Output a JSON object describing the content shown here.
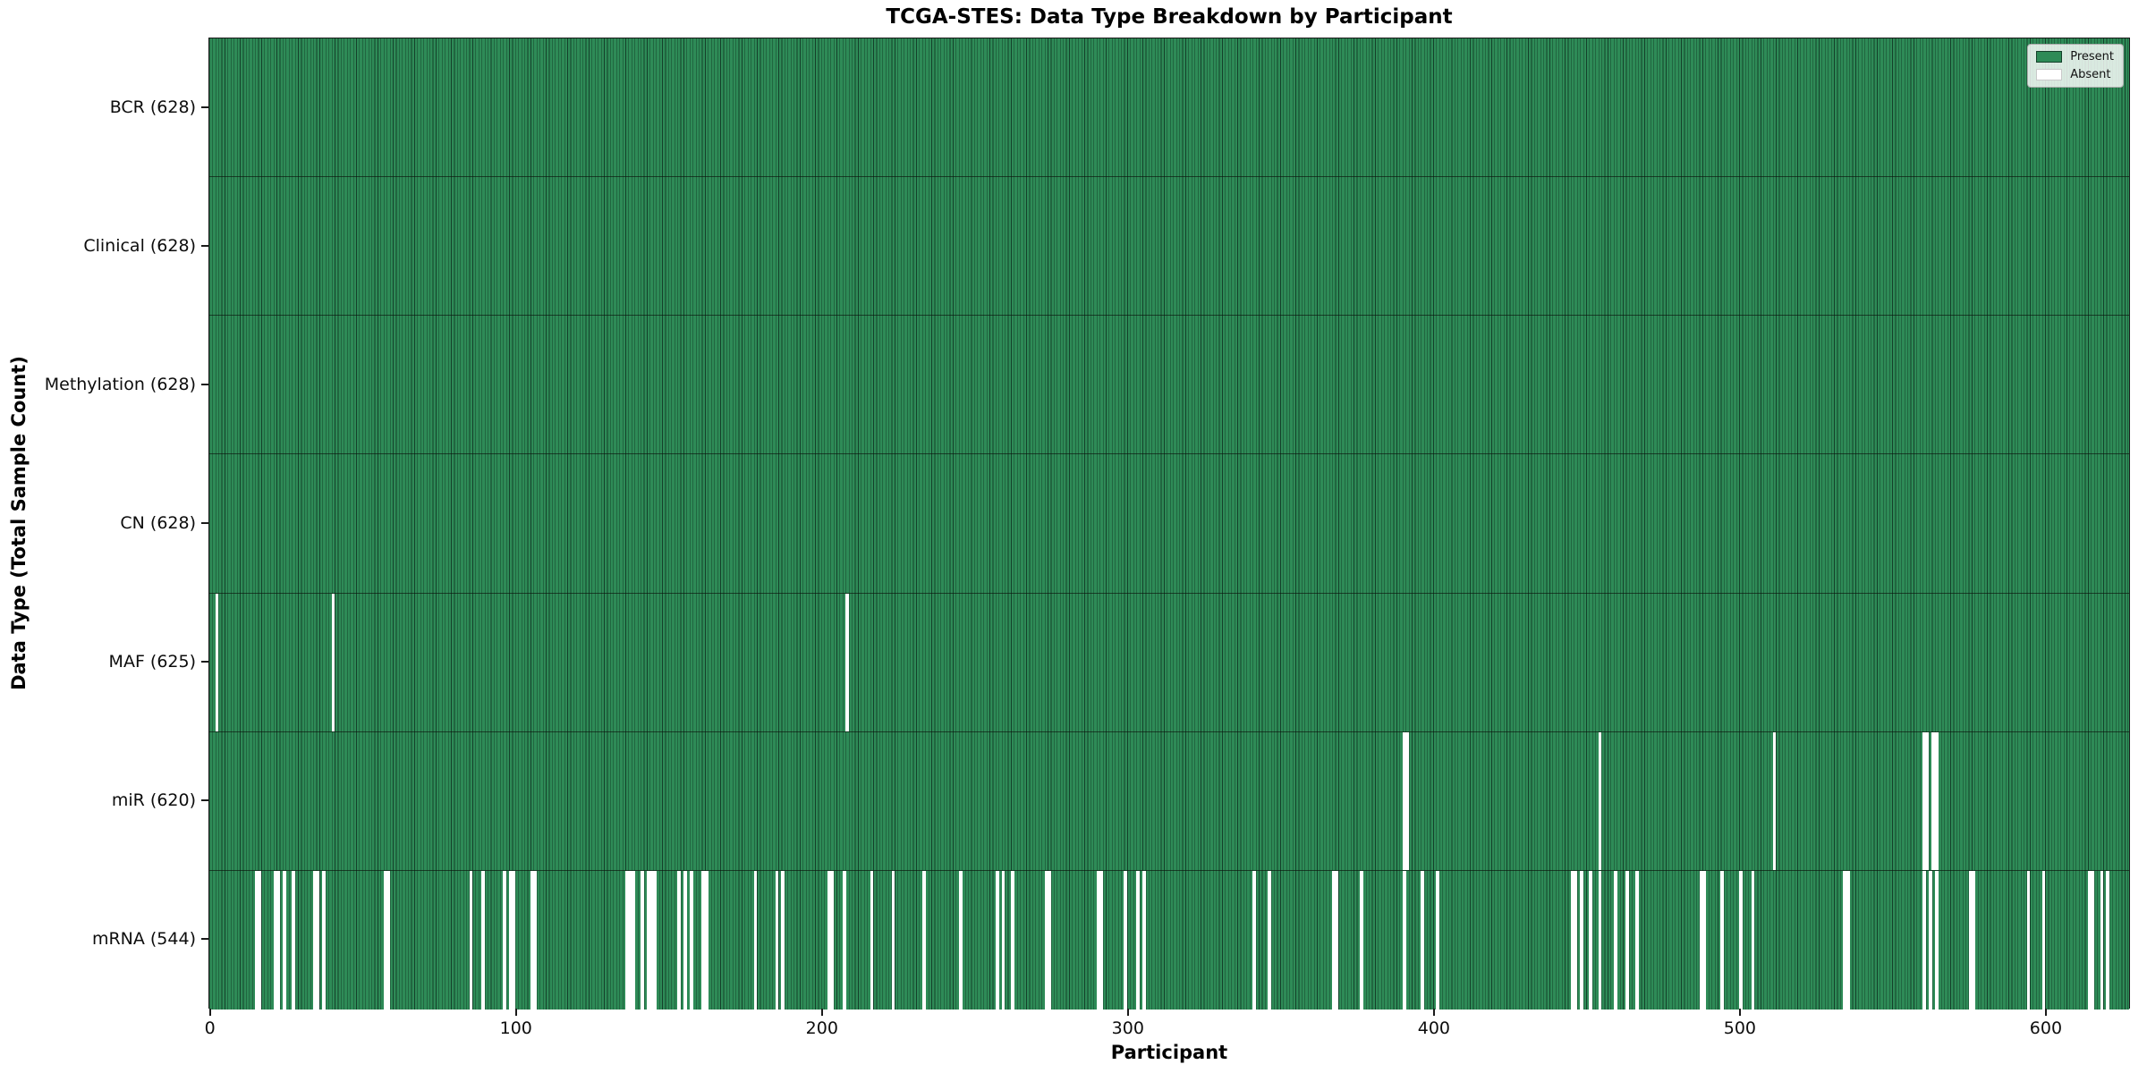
{
  "title": "TCGA-STES: Data Type Breakdown by Participant",
  "xlabel": "Participant",
  "ylabel": "Data Type (Total Sample Count)",
  "legend": {
    "present_label": "Present",
    "absent_label": "Absent"
  },
  "colors": {
    "present": "#2e8b57",
    "present_edge": "#14402a",
    "absent": "#ffffff",
    "axis": "#1a1a1a"
  },
  "chart_data": {
    "type": "heatmap",
    "title": "TCGA-STES: Data Type Breakdown by Participant",
    "xlabel": "Participant",
    "ylabel": "Data Type (Total Sample Count)",
    "legend_entries": [
      "Present",
      "Absent"
    ],
    "legend_position": "upper right",
    "grid": false,
    "n_participants": 628,
    "x_range": [
      0,
      627
    ],
    "x_ticks": [
      0,
      100,
      200,
      300,
      400,
      500,
      600
    ],
    "present_color": "#2e8b57",
    "absent_color": "#ffffff",
    "rows": [
      {
        "label": "BCR (628)",
        "name": "BCR",
        "present_count": 628,
        "absent_participants": []
      },
      {
        "label": "Clinical (628)",
        "name": "Clinical",
        "present_count": 628,
        "absent_participants": []
      },
      {
        "label": "Methylation (628)",
        "name": "Methylation",
        "present_count": 628,
        "absent_participants": []
      },
      {
        "label": "CN (628)",
        "name": "CN",
        "present_count": 628,
        "absent_participants": []
      },
      {
        "label": "MAF (625)",
        "name": "MAF",
        "present_count": 625,
        "absent_participants": [
          2,
          40,
          208
        ]
      },
      {
        "label": "miR (620)",
        "name": "miR",
        "present_count": 620,
        "absent_participants": [
          390,
          391,
          454,
          511,
          560,
          561,
          563,
          564
        ]
      },
      {
        "label": "mRNA (544)",
        "name": "mRNA",
        "present_count": 544,
        "absent_participants": [
          15,
          16,
          21,
          22,
          24,
          27,
          34,
          35,
          37,
          57,
          58,
          85,
          89,
          96,
          98,
          99,
          105,
          106,
          136,
          137,
          138,
          141,
          143,
          144,
          145,
          153,
          155,
          157,
          161,
          162,
          178,
          185,
          187,
          202,
          203,
          207,
          216,
          223,
          233,
          245,
          257,
          259,
          262,
          273,
          274,
          290,
          291,
          299,
          303,
          305,
          341,
          346,
          367,
          368,
          376,
          390,
          396,
          401,
          445,
          446,
          448,
          451,
          454,
          459,
          463,
          466,
          487,
          488,
          494,
          500,
          504,
          534,
          535,
          560,
          562,
          564,
          575,
          576,
          594,
          599,
          614,
          615,
          618,
          620
        ]
      }
    ]
  }
}
